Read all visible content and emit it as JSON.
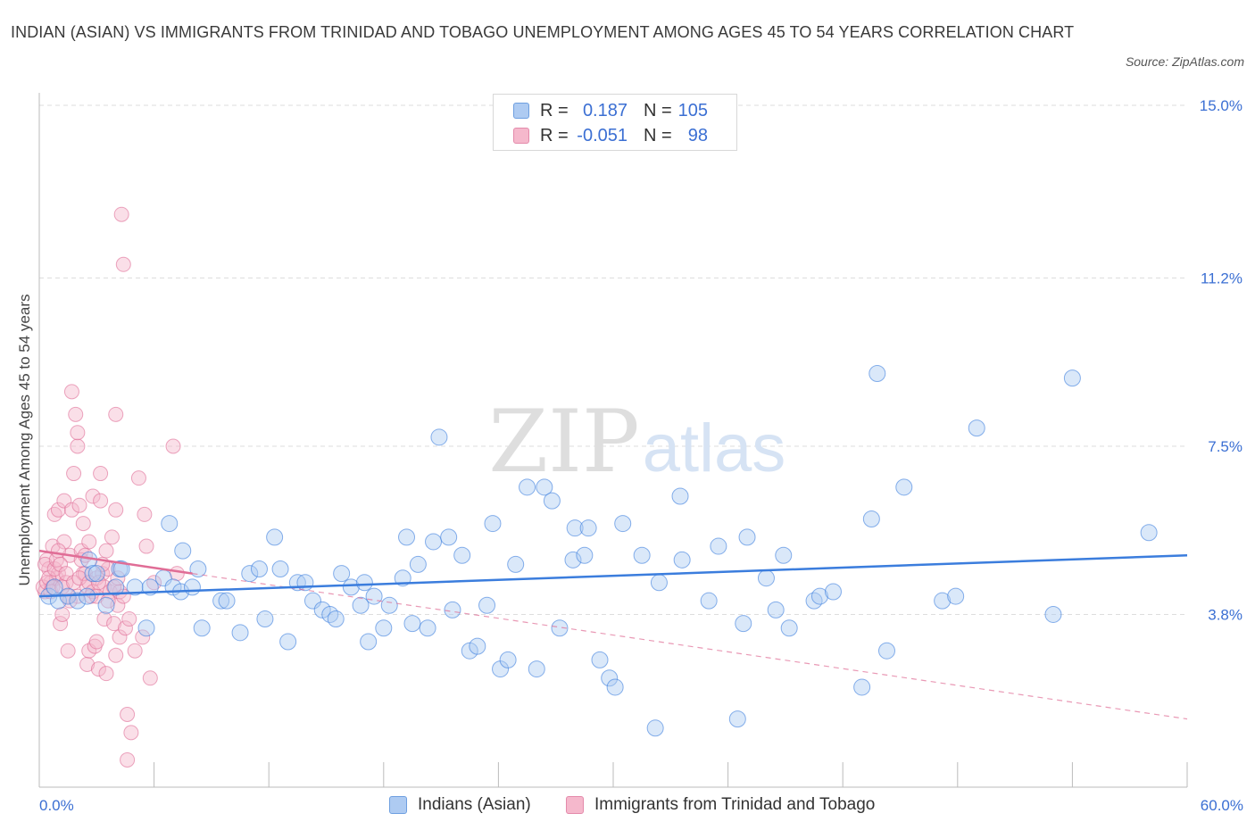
{
  "title": "INDIAN (ASIAN) VS IMMIGRANTS FROM TRINIDAD AND TOBAGO UNEMPLOYMENT AMONG AGES 45 TO 54 YEARS CORRELATION CHART",
  "source": "Source: ZipAtlas.com",
  "watermark": {
    "zip": "ZIP",
    "atlas": "atlas"
  },
  "colors": {
    "blue": "#3b7ddd",
    "blue_fill": "#aecbf2",
    "pink": "#e06d96",
    "pink_fill": "#f5b8cc",
    "axis_text": "#3b6fd3",
    "grid": "#dddddd"
  },
  "stats": {
    "r_label": "R =",
    "n_label": "N =",
    "blue": {
      "r": "0.187",
      "n": "105"
    },
    "pink": {
      "r": "-0.051",
      "n": "98"
    }
  },
  "legend": {
    "blue": "Indians (Asian)",
    "pink": "Immigrants from Trinidad and Tobago"
  },
  "chart_data": {
    "type": "scatter",
    "title": "INDIAN (ASIAN) VS IMMIGRANTS FROM TRINIDAD AND TOBAGO UNEMPLOYMENT AMONG AGES 45 TO 54 YEARS CORRELATION CHART",
    "xlabel": "",
    "ylabel": "Unemployment Among Ages 45 to 54 years",
    "xlim": [
      0,
      60
    ],
    "ylim": [
      0,
      15
    ],
    "x_tick_labels": [
      "0.0%",
      "60.0%"
    ],
    "y_tick_labels": [
      "3.8%",
      "7.5%",
      "11.2%",
      "15.0%"
    ],
    "y_ticks": [
      3.8,
      7.5,
      11.2,
      15.0
    ],
    "grid": true,
    "legend_position": "bottom",
    "series": [
      {
        "name": "Indians (Asian)",
        "color": "#3b7ddd",
        "trend": {
          "x": [
            0,
            60
          ],
          "y": [
            4.2,
            5.1
          ]
        },
        "points": [
          [
            0.5,
            4.2
          ],
          [
            1.0,
            4.1
          ],
          [
            1.5,
            4.2
          ],
          [
            2.0,
            4.1
          ],
          [
            2.5,
            4.2
          ],
          [
            2.6,
            5.0
          ],
          [
            2.8,
            4.7
          ],
          [
            3.0,
            4.7
          ],
          [
            3.5,
            4.0
          ],
          [
            4.0,
            4.4
          ],
          [
            4.2,
            4.8
          ],
          [
            4.3,
            4.8
          ],
          [
            5.0,
            4.4
          ],
          [
            5.6,
            3.5
          ],
          [
            5.8,
            4.4
          ],
          [
            6.5,
            4.6
          ],
          [
            6.8,
            5.8
          ],
          [
            7.0,
            4.4
          ],
          [
            7.4,
            4.3
          ],
          [
            7.5,
            5.2
          ],
          [
            8.0,
            4.4
          ],
          [
            8.3,
            4.8
          ],
          [
            8.5,
            3.5
          ],
          [
            9.5,
            4.1
          ],
          [
            9.8,
            4.1
          ],
          [
            10.5,
            3.4
          ],
          [
            11.0,
            4.7
          ],
          [
            11.5,
            4.8
          ],
          [
            11.8,
            3.7
          ],
          [
            12.3,
            5.5
          ],
          [
            12.6,
            4.8
          ],
          [
            13.0,
            3.2
          ],
          [
            13.5,
            4.5
          ],
          [
            13.9,
            4.5
          ],
          [
            14.3,
            4.1
          ],
          [
            14.8,
            3.9
          ],
          [
            15.2,
            3.8
          ],
          [
            15.5,
            3.7
          ],
          [
            15.8,
            4.7
          ],
          [
            16.3,
            4.4
          ],
          [
            16.8,
            4.0
          ],
          [
            17.0,
            4.5
          ],
          [
            17.2,
            3.2
          ],
          [
            17.5,
            4.2
          ],
          [
            18.0,
            3.5
          ],
          [
            18.3,
            4.0
          ],
          [
            19.0,
            4.6
          ],
          [
            19.2,
            5.5
          ],
          [
            19.5,
            3.6
          ],
          [
            19.8,
            4.9
          ],
          [
            20.3,
            3.5
          ],
          [
            20.6,
            5.4
          ],
          [
            20.9,
            7.7
          ],
          [
            21.4,
            5.5
          ],
          [
            21.6,
            3.9
          ],
          [
            22.1,
            5.1
          ],
          [
            22.5,
            3.0
          ],
          [
            22.9,
            3.1
          ],
          [
            23.4,
            4.0
          ],
          [
            23.7,
            5.8
          ],
          [
            24.1,
            2.6
          ],
          [
            24.5,
            2.8
          ],
          [
            24.9,
            4.9
          ],
          [
            25.5,
            6.6
          ],
          [
            26.0,
            2.6
          ],
          [
            26.4,
            6.6
          ],
          [
            26.8,
            6.3
          ],
          [
            27.2,
            3.5
          ],
          [
            27.9,
            5.0
          ],
          [
            28.0,
            5.7
          ],
          [
            28.5,
            5.1
          ],
          [
            28.7,
            5.7
          ],
          [
            29.3,
            2.8
          ],
          [
            29.8,
            2.4
          ],
          [
            30.1,
            2.2
          ],
          [
            30.5,
            5.8
          ],
          [
            31.5,
            5.1
          ],
          [
            32.2,
            1.3
          ],
          [
            32.4,
            4.5
          ],
          [
            33.5,
            6.4
          ],
          [
            33.6,
            5.0
          ],
          [
            35.0,
            4.1
          ],
          [
            35.5,
            5.3
          ],
          [
            36.5,
            1.5
          ],
          [
            36.8,
            3.6
          ],
          [
            37.0,
            5.5
          ],
          [
            38.0,
            4.6
          ],
          [
            38.5,
            3.9
          ],
          [
            38.9,
            5.1
          ],
          [
            39.2,
            3.5
          ],
          [
            40.5,
            4.1
          ],
          [
            40.8,
            4.2
          ],
          [
            41.5,
            4.3
          ],
          [
            43.5,
            5.9
          ],
          [
            43.0,
            2.2
          ],
          [
            43.8,
            9.1
          ],
          [
            44.3,
            3.0
          ],
          [
            45.2,
            6.6
          ],
          [
            47.2,
            4.1
          ],
          [
            47.9,
            4.2
          ],
          [
            49.0,
            7.9
          ],
          [
            53.0,
            3.8
          ],
          [
            54.0,
            9.0
          ],
          [
            58.0,
            5.6
          ],
          [
            0.8,
            4.4
          ]
        ]
      },
      {
        "name": "Immigrants from Trinidad and Tobago",
        "color": "#e06d96",
        "trend": {
          "x": [
            0,
            8
          ],
          "y": [
            5.2,
            4.7
          ]
        },
        "trend_dashed": {
          "x": [
            8,
            60
          ],
          "y": [
            4.7,
            1.5
          ]
        },
        "points": [
          [
            0.3,
            4.3
          ],
          [
            0.4,
            5.0
          ],
          [
            0.5,
            4.8
          ],
          [
            0.6,
            4.5
          ],
          [
            0.7,
            5.3
          ],
          [
            0.8,
            6.0
          ],
          [
            0.9,
            4.6
          ],
          [
            1.0,
            6.1
          ],
          [
            1.0,
            4.7
          ],
          [
            1.1,
            3.6
          ],
          [
            1.2,
            3.8
          ],
          [
            1.3,
            5.4
          ],
          [
            1.3,
            6.3
          ],
          [
            1.4,
            4.5
          ],
          [
            1.5,
            4.2
          ],
          [
            1.5,
            3.0
          ],
          [
            1.6,
            5.1
          ],
          [
            1.7,
            6.1
          ],
          [
            1.7,
            8.7
          ],
          [
            1.8,
            6.9
          ],
          [
            1.9,
            8.2
          ],
          [
            2.0,
            7.5
          ],
          [
            2.0,
            7.8
          ],
          [
            2.0,
            4.2
          ],
          [
            2.1,
            6.2
          ],
          [
            2.2,
            5.2
          ],
          [
            2.3,
            5.8
          ],
          [
            2.3,
            4.7
          ],
          [
            2.4,
            4.7
          ],
          [
            2.5,
            4.4
          ],
          [
            2.5,
            2.7
          ],
          [
            2.6,
            3.0
          ],
          [
            2.6,
            5.4
          ],
          [
            2.7,
            4.2
          ],
          [
            2.8,
            6.4
          ],
          [
            2.9,
            3.1
          ],
          [
            3.0,
            4.6
          ],
          [
            3.0,
            3.2
          ],
          [
            3.1,
            2.6
          ],
          [
            3.2,
            6.3
          ],
          [
            3.2,
            6.9
          ],
          [
            3.3,
            4.7
          ],
          [
            3.4,
            4.4
          ],
          [
            3.4,
            3.7
          ],
          [
            3.5,
            5.2
          ],
          [
            3.5,
            2.5
          ],
          [
            3.6,
            4.8
          ],
          [
            3.7,
            4.3
          ],
          [
            3.8,
            5.5
          ],
          [
            3.9,
            3.6
          ],
          [
            4.0,
            8.2
          ],
          [
            4.0,
            6.1
          ],
          [
            4.0,
            2.9
          ],
          [
            4.1,
            4.0
          ],
          [
            4.2,
            4.3
          ],
          [
            4.2,
            3.3
          ],
          [
            4.3,
            12.6
          ],
          [
            4.4,
            11.5
          ],
          [
            4.5,
            3.5
          ],
          [
            4.6,
            1.6
          ],
          [
            4.7,
            3.7
          ],
          [
            5.0,
            3.0
          ],
          [
            5.2,
            6.8
          ],
          [
            5.4,
            3.3
          ],
          [
            5.5,
            6.0
          ],
          [
            5.6,
            5.3
          ],
          [
            5.8,
            2.4
          ],
          [
            6.0,
            4.5
          ],
          [
            7.0,
            7.5
          ],
          [
            7.2,
            4.7
          ],
          [
            4.8,
            1.2
          ],
          [
            4.6,
            0.6
          ],
          [
            0.2,
            4.4
          ],
          [
            0.3,
            4.9
          ],
          [
            0.4,
            4.5
          ],
          [
            0.5,
            4.6
          ],
          [
            0.6,
            4.3
          ],
          [
            0.7,
            4.4
          ],
          [
            0.8,
            4.8
          ],
          [
            0.9,
            5.0
          ],
          [
            1.0,
            5.2
          ],
          [
            1.1,
            4.9
          ],
          [
            1.2,
            4.4
          ],
          [
            1.4,
            4.7
          ],
          [
            1.6,
            4.1
          ],
          [
            1.8,
            4.5
          ],
          [
            2.1,
            4.6
          ],
          [
            2.2,
            5.0
          ],
          [
            2.4,
            5.1
          ],
          [
            2.6,
            4.5
          ],
          [
            2.8,
            4.3
          ],
          [
            3.0,
            4.2
          ],
          [
            3.1,
            4.5
          ],
          [
            3.3,
            4.9
          ],
          [
            3.6,
            4.1
          ],
          [
            3.9,
            4.4
          ],
          [
            4.1,
            4.6
          ],
          [
            4.4,
            4.2
          ]
        ]
      }
    ]
  }
}
